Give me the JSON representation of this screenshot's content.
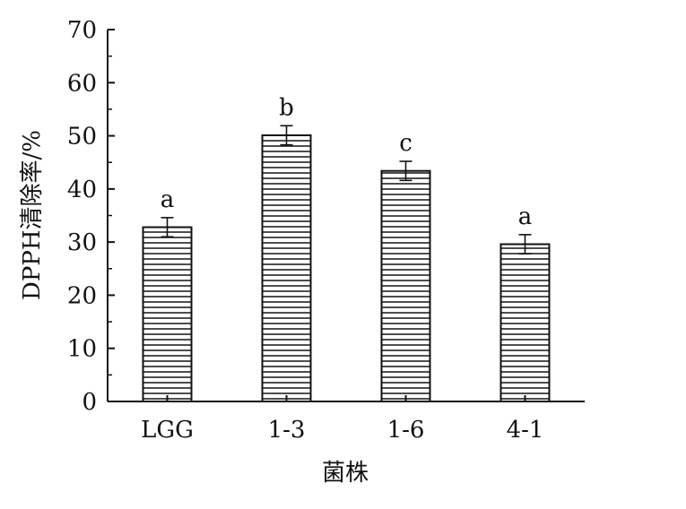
{
  "chart_data": {
    "type": "bar",
    "title": "",
    "xlabel": "菌株",
    "ylabel": "DPPH清除率/%",
    "categories": [
      "LGG",
      "1-3",
      "1-6",
      "4-1"
    ],
    "values": [
      32.8,
      50.1,
      43.4,
      29.6
    ],
    "errors": [
      1.8,
      1.8,
      1.8,
      1.8
    ],
    "significance": [
      "a",
      "b",
      "c",
      "a"
    ],
    "ylim": [
      0,
      70
    ],
    "yticks": [
      0,
      10,
      20,
      30,
      40,
      50,
      60,
      70
    ],
    "yticks_label": [
      "0",
      "10",
      "20",
      "30",
      "40",
      "50",
      "60",
      "70"
    ],
    "grid": false,
    "bar_fill": "horizontal-stripes",
    "colors": {
      "bar_stroke": "#111111",
      "stripe": "#222222",
      "axis": "#111111"
    }
  }
}
